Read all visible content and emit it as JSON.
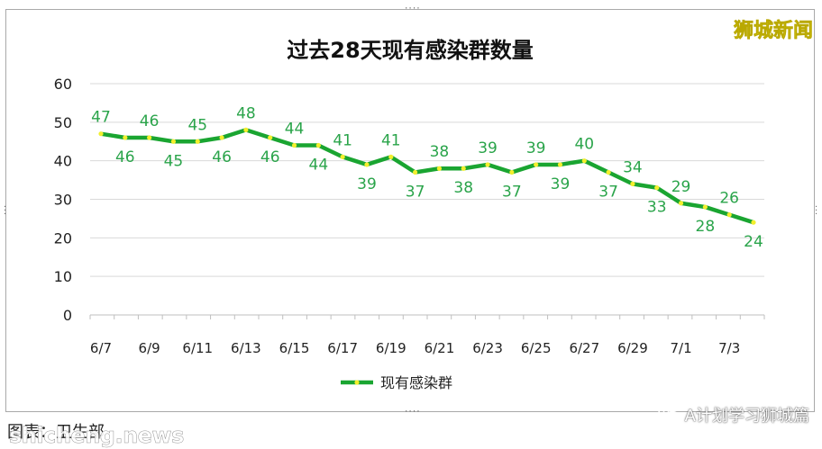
{
  "chart_data": {
    "type": "line",
    "title": "过去28天现有感染群数量",
    "xlabel": "",
    "ylabel": "",
    "ylim": [
      0,
      60
    ],
    "yticks": [
      0,
      10,
      20,
      30,
      40,
      50,
      60
    ],
    "grid": true,
    "legend_position": "bottom",
    "x_tick_labels": [
      "6/7",
      "6/9",
      "6/11",
      "6/13",
      "6/15",
      "6/17",
      "6/19",
      "6/21",
      "6/23",
      "6/25",
      "6/27",
      "6/29",
      "7/1",
      "7/3"
    ],
    "x": [
      "6/7",
      "6/8",
      "6/9",
      "6/10",
      "6/11",
      "6/12",
      "6/13",
      "6/14",
      "6/15",
      "6/16",
      "6/17",
      "6/18",
      "6/19",
      "6/20",
      "6/21",
      "6/22",
      "6/23",
      "6/24",
      "6/25",
      "6/26",
      "6/27",
      "6/28",
      "6/29",
      "6/30",
      "7/1",
      "7/2",
      "7/3",
      "7/4"
    ],
    "series": [
      {
        "name": "现有感染群",
        "values": [
          47,
          46,
          46,
          45,
          45,
          46,
          48,
          46,
          44,
          44,
          41,
          39,
          41,
          37,
          38,
          38,
          39,
          37,
          39,
          39,
          40,
          37,
          34,
          33,
          29,
          28,
          26,
          24
        ],
        "line_color": "#1aa531",
        "marker_color": "#f3ef2e",
        "label_color": "#2aa44a"
      }
    ],
    "label_position": [
      "above",
      "below",
      "above",
      "below",
      "above",
      "below",
      "above",
      "below",
      "above",
      "below",
      "above",
      "below",
      "above",
      "below",
      "above",
      "below",
      "above",
      "below",
      "above",
      "below",
      "above",
      "below",
      "above",
      "below",
      "above",
      "below",
      "above",
      "below"
    ]
  },
  "watermark": "狮城新闻",
  "caption": "图表：卫生部",
  "caption_overlay": "shicheng.news",
  "wechat_account": "A计划学习狮城篇",
  "wechat_icon": "wechat-icon"
}
